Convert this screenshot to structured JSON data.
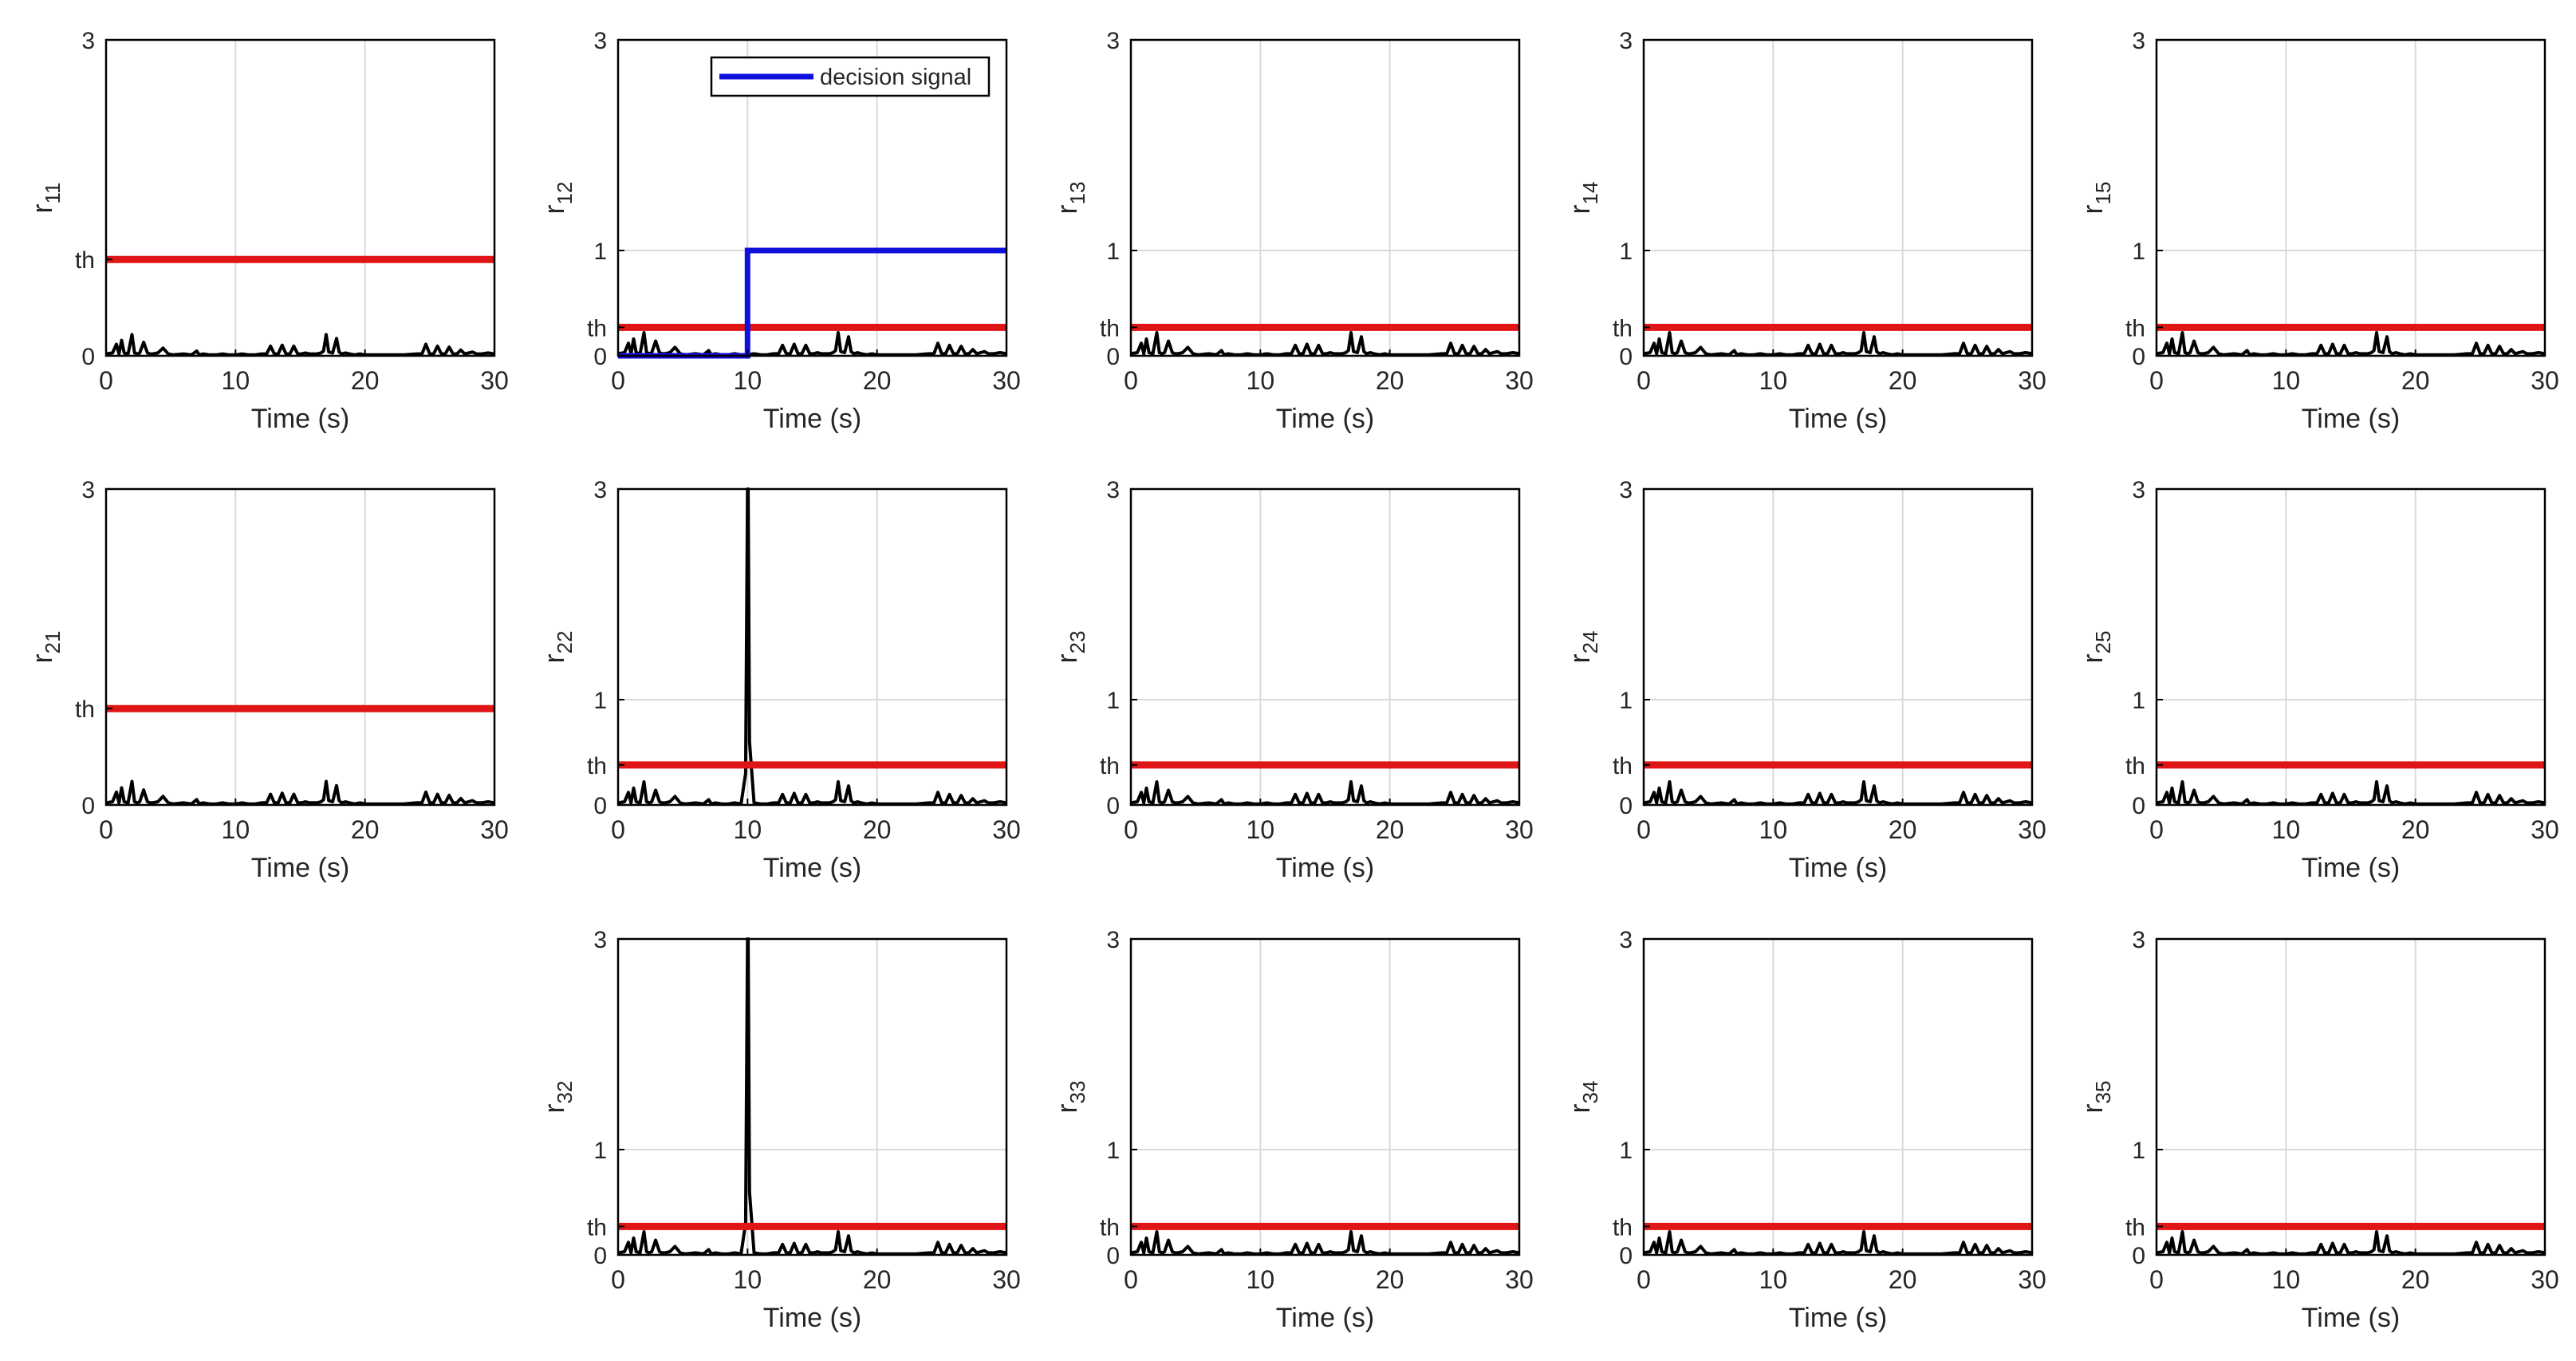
{
  "colors": {
    "residual": "#000000",
    "threshold": "#e01515",
    "decision": "#1010dd",
    "grid": "#d9d9d9",
    "axis": "#000000"
  },
  "chart_data": [
    {
      "type": "line",
      "ylabel_main": "r",
      "ylabel_sub": "11",
      "xlabel": "Time (s)",
      "xlim": [
        0,
        30
      ],
      "ylim": [
        0,
        3
      ],
      "xticks": [
        "0",
        "10",
        "20",
        "30"
      ],
      "yticks": [
        "0",
        "th",
        "3"
      ],
      "threshold": 1.0,
      "threshold_label": "th",
      "residual_profile": "base",
      "series": [
        {
          "values": "residual"
        }
      ]
    },
    {
      "type": "line",
      "ylabel_main": "r",
      "ylabel_sub": "12",
      "xlabel": "Time (s)",
      "xlim": [
        0,
        30
      ],
      "ylim": [
        0,
        3
      ],
      "xticks": [
        "0",
        "10",
        "20",
        "30"
      ],
      "yticks": [
        "0",
        "th",
        "1",
        "3"
      ],
      "threshold": 0.27,
      "threshold_label": "th",
      "residual_profile": "base",
      "legend": "decision signal",
      "legend_position": "top-right",
      "decision_signal": {
        "x": [
          0,
          10,
          10,
          30
        ],
        "y": [
          0,
          0,
          1,
          1
        ]
      }
    },
    {
      "type": "line",
      "ylabel_main": "r",
      "ylabel_sub": "13",
      "xlabel": "Time (s)",
      "xlim": [
        0,
        30
      ],
      "ylim": [
        0,
        3
      ],
      "xticks": [
        "0",
        "10",
        "20",
        "30"
      ],
      "yticks": [
        "0",
        "th",
        "1",
        "3"
      ],
      "threshold": 0.27,
      "threshold_label": "th",
      "residual_profile": "base"
    },
    {
      "type": "line",
      "ylabel_main": "r",
      "ylabel_sub": "14",
      "xlabel": "Time (s)",
      "xlim": [
        0,
        30
      ],
      "ylim": [
        0,
        3
      ],
      "xticks": [
        "0",
        "10",
        "20",
        "30"
      ],
      "yticks": [
        "0",
        "th",
        "1",
        "3"
      ],
      "threshold": 0.27,
      "threshold_label": "th",
      "residual_profile": "base"
    },
    {
      "type": "line",
      "ylabel_main": "r",
      "ylabel_sub": "15",
      "xlabel": "Time (s)",
      "xlim": [
        0,
        30
      ],
      "ylim": [
        0,
        3
      ],
      "xticks": [
        "0",
        "10",
        "20",
        "30"
      ],
      "yticks": [
        "0",
        "th",
        "1",
        "3"
      ],
      "threshold": 0.27,
      "threshold_label": "th",
      "residual_profile": "base"
    },
    {
      "type": "line",
      "ylabel_main": "r",
      "ylabel_sub": "21",
      "xlabel": "Time (s)",
      "xlim": [
        0,
        30
      ],
      "ylim": [
        0,
        3
      ],
      "xticks": [
        "0",
        "10",
        "20",
        "30"
      ],
      "yticks": [
        "0",
        "th",
        "3"
      ],
      "threshold": 0.9,
      "threshold_label": "th",
      "residual_profile": "base"
    },
    {
      "type": "line",
      "ylabel_main": "r",
      "ylabel_sub": "22",
      "xlabel": "Time (s)",
      "xlim": [
        0,
        30
      ],
      "ylim": [
        0,
        3
      ],
      "xticks": [
        "0",
        "10",
        "20",
        "30"
      ],
      "yticks": [
        "0",
        "th",
        "1",
        "3"
      ],
      "threshold": 0.38,
      "threshold_label": "th",
      "residual_profile": "spike"
    },
    {
      "type": "line",
      "ylabel_main": "r",
      "ylabel_sub": "23",
      "xlabel": "Time (s)",
      "xlim": [
        0,
        30
      ],
      "ylim": [
        0,
        3
      ],
      "xticks": [
        "0",
        "10",
        "20",
        "30"
      ],
      "yticks": [
        "0",
        "th",
        "1",
        "3"
      ],
      "threshold": 0.38,
      "threshold_label": "th",
      "residual_profile": "base"
    },
    {
      "type": "line",
      "ylabel_main": "r",
      "ylabel_sub": "24",
      "xlabel": "Time (s)",
      "xlim": [
        0,
        30
      ],
      "ylim": [
        0,
        3
      ],
      "xticks": [
        "0",
        "10",
        "20",
        "30"
      ],
      "yticks": [
        "0",
        "th",
        "1",
        "3"
      ],
      "threshold": 0.38,
      "threshold_label": "th",
      "residual_profile": "base"
    },
    {
      "type": "line",
      "ylabel_main": "r",
      "ylabel_sub": "25",
      "xlabel": "Time (s)",
      "xlim": [
        0,
        30
      ],
      "ylim": [
        0,
        3
      ],
      "xticks": [
        "0",
        "10",
        "20",
        "30"
      ],
      "yticks": [
        "0",
        "th",
        "1",
        "3"
      ],
      "threshold": 0.38,
      "threshold_label": "th",
      "residual_profile": "base"
    },
    {
      "type": "line",
      "ylabel_main": "r",
      "ylabel_sub": "32",
      "xlabel": "Time (s)",
      "xlim": [
        0,
        30
      ],
      "ylim": [
        0,
        3
      ],
      "xticks": [
        "0",
        "10",
        "20",
        "30"
      ],
      "yticks": [
        "0",
        "th",
        "1",
        "3"
      ],
      "threshold": 0.27,
      "threshold_label": "th",
      "residual_profile": "spike"
    },
    {
      "type": "line",
      "ylabel_main": "r",
      "ylabel_sub": "33",
      "xlabel": "Time (s)",
      "xlim": [
        0,
        30
      ],
      "ylim": [
        0,
        3
      ],
      "xticks": [
        "0",
        "10",
        "20",
        "30"
      ],
      "yticks": [
        "0",
        "th",
        "1",
        "3"
      ],
      "threshold": 0.27,
      "threshold_label": "th",
      "residual_profile": "base"
    },
    {
      "type": "line",
      "ylabel_main": "r",
      "ylabel_sub": "34",
      "xlabel": "Time (s)",
      "xlim": [
        0,
        30
      ],
      "ylim": [
        0,
        3
      ],
      "xticks": [
        "0",
        "10",
        "20",
        "30"
      ],
      "yticks": [
        "0",
        "th",
        "1",
        "3"
      ],
      "threshold": 0.27,
      "threshold_label": "th",
      "residual_profile": "base"
    },
    {
      "type": "line",
      "ylabel_main": "r",
      "ylabel_sub": "35",
      "xlabel": "Time (s)",
      "xlim": [
        0,
        30
      ],
      "ylim": [
        0,
        3
      ],
      "xticks": [
        "0",
        "10",
        "20",
        "30"
      ],
      "yticks": [
        "0",
        "th",
        "1",
        "3"
      ],
      "threshold": 0.27,
      "threshold_label": "th",
      "residual_profile": "base"
    }
  ],
  "residual": {
    "base": {
      "x": [
        0,
        0.5,
        0.8,
        1.0,
        1.2,
        1.4,
        1.7,
        2.0,
        2.2,
        2.4,
        2.6,
        2.9,
        3.2,
        3.4,
        3.6,
        4.0,
        4.4,
        4.8,
        5.2,
        6.0,
        6.6,
        7.0,
        7.2,
        7.5,
        8.0,
        8.5,
        9.0,
        9.5,
        10.0,
        10.5,
        11.0,
        11.5,
        12.0,
        12.4,
        12.7,
        13.0,
        13.3,
        13.6,
        13.9,
        14.2,
        14.5,
        14.8,
        15.1,
        15.4,
        15.7,
        16.0,
        16.3,
        16.6,
        16.8,
        17.0,
        17.2,
        17.5,
        17.8,
        18.0,
        18.2,
        18.5,
        18.8,
        19.2,
        19.6,
        20.0,
        21.0,
        22.0,
        23.0,
        24.0,
        24.4,
        24.7,
        25.0,
        25.3,
        25.6,
        25.9,
        26.2,
        26.5,
        26.8,
        27.1,
        27.4,
        27.7,
        28.0,
        28.3,
        28.6,
        29.0,
        29.5,
        30.0
      ],
      "y": [
        0.02,
        0.03,
        0.12,
        0.02,
        0.16,
        0.03,
        0.02,
        0.22,
        0.03,
        0.02,
        0.03,
        0.14,
        0.03,
        0.02,
        0.02,
        0.03,
        0.08,
        0.02,
        0.01,
        0.02,
        0.01,
        0.05,
        0.01,
        0.02,
        0.01,
        0.01,
        0.02,
        0.01,
        0.01,
        0.02,
        0.01,
        0.01,
        0.02,
        0.02,
        0.1,
        0.02,
        0.02,
        0.11,
        0.02,
        0.02,
        0.1,
        0.02,
        0.02,
        0.03,
        0.02,
        0.02,
        0.02,
        0.03,
        0.05,
        0.22,
        0.04,
        0.03,
        0.18,
        0.04,
        0.02,
        0.03,
        0.02,
        0.01,
        0.02,
        0.01,
        0.01,
        0.01,
        0.01,
        0.02,
        0.02,
        0.12,
        0.02,
        0.02,
        0.1,
        0.02,
        0.02,
        0.09,
        0.02,
        0.02,
        0.06,
        0.02,
        0.03,
        0.04,
        0.02,
        0.02,
        0.03,
        0.02
      ]
    },
    "spike_points": {
      "x": [
        9.85,
        10.0,
        10.05,
        10.15
      ],
      "y": [
        0.3,
        3.1,
        3.1,
        0.6
      ]
    }
  }
}
